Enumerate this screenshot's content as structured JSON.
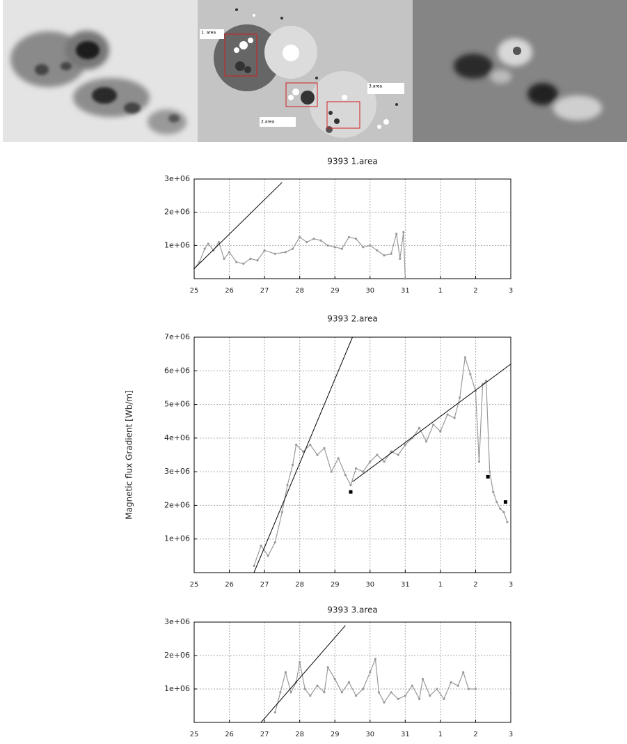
{
  "images": {
    "labels": [
      "1. area",
      "2.area",
      "3.area"
    ]
  },
  "chart_data": [
    {
      "type": "line",
      "title": "9393 1.area",
      "grid": true,
      "xlim": [
        25,
        34
      ],
      "xticks": [
        25,
        26,
        27,
        28,
        29,
        30,
        31,
        {
          "value": 32,
          "label": "1"
        },
        {
          "value": 33,
          "label": "2"
        },
        {
          "value": 34,
          "label": "3"
        }
      ],
      "ylim": [
        0,
        3000000
      ],
      "yticks": [
        {
          "value": 1000000,
          "label": "1e+06"
        },
        {
          "value": 2000000,
          "label": "2e+06"
        },
        {
          "value": 3000000,
          "label": "3e+06"
        }
      ],
      "series": [
        {
          "color": "#999999",
          "marker": "dot",
          "x": [
            25.0,
            25.15,
            25.3,
            25.4,
            25.55,
            25.7,
            25.85,
            26.0,
            26.2,
            26.4,
            26.6,
            26.8,
            27.0,
            27.3,
            27.6,
            27.8,
            28.0,
            28.2,
            28.4,
            28.6,
            28.8,
            29.0,
            29.2,
            29.4,
            29.6,
            29.8,
            30.0,
            30.2,
            30.4,
            30.6,
            30.75,
            30.85,
            30.95,
            31.0
          ],
          "values": [
            300000,
            500000,
            900000,
            1050000,
            850000,
            1100000,
            600000,
            800000,
            500000,
            450000,
            600000,
            550000,
            850000,
            750000,
            800000,
            900000,
            1250000,
            1100000,
            1200000,
            1150000,
            1000000,
            950000,
            900000,
            1250000,
            1200000,
            950000,
            1000000,
            850000,
            700000,
            750000,
            1350000,
            600000,
            1400000,
            0
          ]
        },
        {
          "color": "#000000",
          "marker": "none",
          "x": [
            25.0,
            27.5
          ],
          "values": [
            300000,
            2900000
          ]
        }
      ]
    },
    {
      "type": "line",
      "title": "9393 2.area",
      "ylabel": "Magnetic flux Gradient [Wb/m]",
      "grid": true,
      "xlim": [
        25,
        34
      ],
      "xticks": [
        25,
        26,
        27,
        28,
        29,
        30,
        31,
        {
          "value": 32,
          "label": "1"
        },
        {
          "value": 33,
          "label": "2"
        },
        {
          "value": 34,
          "label": "3"
        }
      ],
      "ylim": [
        0,
        7000000
      ],
      "yticks": [
        {
          "value": 1000000,
          "label": "1e+06"
        },
        {
          "value": 2000000,
          "label": "2e+06"
        },
        {
          "value": 3000000,
          "label": "3e+06"
        },
        {
          "value": 4000000,
          "label": "4e+06"
        },
        {
          "value": 5000000,
          "label": "5e+06"
        },
        {
          "value": 6000000,
          "label": "6e+06"
        },
        {
          "value": 7000000,
          "label": "7e+06"
        }
      ],
      "series": [
        {
          "color": "#999999",
          "marker": "dot",
          "x": [
            26.7,
            26.9,
            27.1,
            27.3,
            27.5,
            27.65,
            27.8,
            27.9,
            28.1,
            28.3,
            28.5,
            28.7,
            28.9,
            29.1,
            29.3,
            29.45,
            29.6,
            29.8,
            30.0,
            30.2,
            30.4,
            30.6,
            30.8,
            31.0,
            31.2,
            31.4,
            31.6,
            31.8,
            32.0,
            32.2,
            32.4,
            32.55,
            32.7,
            32.85,
            33.0,
            33.1,
            33.2,
            33.3,
            33.4,
            33.5,
            33.6,
            33.7,
            33.8,
            33.9
          ],
          "values": [
            200000,
            800000,
            500000,
            900000,
            1800000,
            2600000,
            3200000,
            3800000,
            3600000,
            3800000,
            3500000,
            3700000,
            3000000,
            3400000,
            2900000,
            2600000,
            3100000,
            3000000,
            3300000,
            3500000,
            3300000,
            3600000,
            3500000,
            3800000,
            4000000,
            4300000,
            3900000,
            4400000,
            4200000,
            4700000,
            4600000,
            5200000,
            6400000,
            5900000,
            5400000,
            3300000,
            5600000,
            5700000,
            3000000,
            2400000,
            2100000,
            1900000,
            1800000,
            1500000
          ]
        },
        {
          "color": "#000000",
          "marker": "none",
          "x": [
            26.7,
            29.5
          ],
          "values": [
            0,
            7000000
          ]
        },
        {
          "color": "#000000",
          "marker": "none",
          "x": [
            29.5,
            34.0
          ],
          "values": [
            2700000,
            6200000
          ]
        },
        {
          "color": "#000000",
          "marker": "square",
          "x": [
            29.45,
            33.35,
            33.85
          ],
          "values": [
            2400000,
            2850000,
            2100000
          ]
        }
      ]
    },
    {
      "type": "line",
      "title": "9393 3.area",
      "grid": true,
      "xlim": [
        25,
        34
      ],
      "xticks": [
        25,
        26,
        27,
        28,
        29,
        30,
        31,
        {
          "value": 32,
          "label": "1"
        },
        {
          "value": 33,
          "label": "2"
        },
        {
          "value": 34,
          "label": "3"
        }
      ],
      "ylim": [
        0,
        3000000
      ],
      "yticks": [
        {
          "value": 1000000,
          "label": "1e+06"
        },
        {
          "value": 2000000,
          "label": "2e+06"
        },
        {
          "value": 3000000,
          "label": "3e+06"
        }
      ],
      "series": [
        {
          "color": "#999999",
          "marker": "dot",
          "x": [
            27.3,
            27.45,
            27.6,
            27.75,
            27.9,
            28.0,
            28.15,
            28.3,
            28.5,
            28.7,
            28.8,
            29.0,
            29.2,
            29.4,
            29.6,
            29.8,
            30.0,
            30.15,
            30.25,
            30.4,
            30.6,
            30.8,
            31.0,
            31.2,
            31.4,
            31.5,
            31.7,
            31.9,
            32.1,
            32.3,
            32.5,
            32.65,
            32.8,
            33.0
          ],
          "values": [
            300000,
            900000,
            1500000,
            900000,
            1200000,
            1800000,
            1000000,
            800000,
            1100000,
            900000,
            1650000,
            1300000,
            900000,
            1200000,
            800000,
            1000000,
            1500000,
            1900000,
            900000,
            600000,
            900000,
            700000,
            800000,
            1100000,
            700000,
            1300000,
            800000,
            1000000,
            700000,
            1200000,
            1100000,
            1500000,
            1000000,
            1000000
          ]
        },
        {
          "color": "#000000",
          "marker": "none",
          "x": [
            26.9,
            29.3
          ],
          "values": [
            0,
            2900000
          ]
        }
      ]
    }
  ]
}
